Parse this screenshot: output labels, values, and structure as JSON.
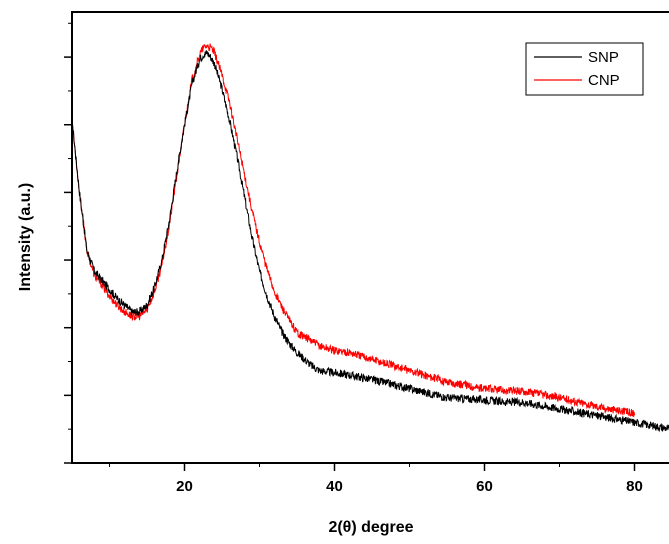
{
  "chart_data": {
    "type": "line",
    "xlabel": "2(θ) degree",
    "ylabel": "Intensity (a.u.)",
    "xlim": [
      5,
      85
    ],
    "ylim": [
      0,
      100
    ],
    "x_ticks": [
      20,
      40,
      60,
      80
    ],
    "y_tick_labels_shown": false,
    "grid": false,
    "legend_position": "top-right",
    "series": [
      {
        "name": "SNP",
        "color": "#000000",
        "x": [
          5,
          6,
          7,
          8,
          9,
          10,
          11,
          12,
          13,
          14,
          15,
          16,
          17,
          18,
          19,
          20,
          21,
          22,
          22.5,
          23,
          23.5,
          24,
          25,
          26,
          27,
          28,
          29,
          30,
          31,
          32,
          33,
          34,
          35,
          36,
          37,
          38,
          40,
          42,
          45,
          50,
          55,
          60,
          63,
          65,
          70,
          75,
          80,
          85
        ],
        "y": [
          76,
          60,
          47,
          42.5,
          40.5,
          38.5,
          36.5,
          35,
          33.5,
          33.5,
          35,
          39,
          45,
          54,
          65,
          75,
          84,
          89.5,
          90.5,
          91,
          90,
          88.5,
          83,
          76,
          68,
          59,
          50,
          42.5,
          37,
          32.5,
          29,
          26.5,
          24.5,
          23,
          21.5,
          20.5,
          20,
          19.5,
          18.5,
          16.5,
          14.5,
          14,
          13.5,
          13.5,
          12,
          10.5,
          9,
          7.5
        ]
      },
      {
        "name": "CNP",
        "color": "#ff0000",
        "x": [
          5,
          6,
          7,
          8,
          9,
          10,
          11,
          12,
          13,
          14,
          15,
          16,
          17,
          18,
          19,
          20,
          21,
          22,
          22.5,
          23,
          23.5,
          24,
          25,
          26,
          27,
          28,
          29,
          30,
          31,
          32,
          33,
          34,
          35,
          36,
          37,
          38,
          40,
          42,
          45,
          50,
          55,
          60,
          63,
          65,
          70,
          75,
          80
        ],
        "y": [
          76,
          60,
          47,
          41.5,
          39.5,
          37,
          35,
          33.5,
          32.5,
          32.5,
          34,
          38,
          44,
          53,
          64,
          75,
          85,
          90.5,
          92,
          92.5,
          92,
          91,
          86,
          80,
          72,
          64,
          56,
          49,
          43,
          38,
          34.5,
          31.5,
          29,
          28,
          27,
          26,
          25,
          24.5,
          23,
          20.5,
          18,
          16.5,
          16,
          16,
          14.5,
          12.5,
          11
        ]
      }
    ]
  }
}
